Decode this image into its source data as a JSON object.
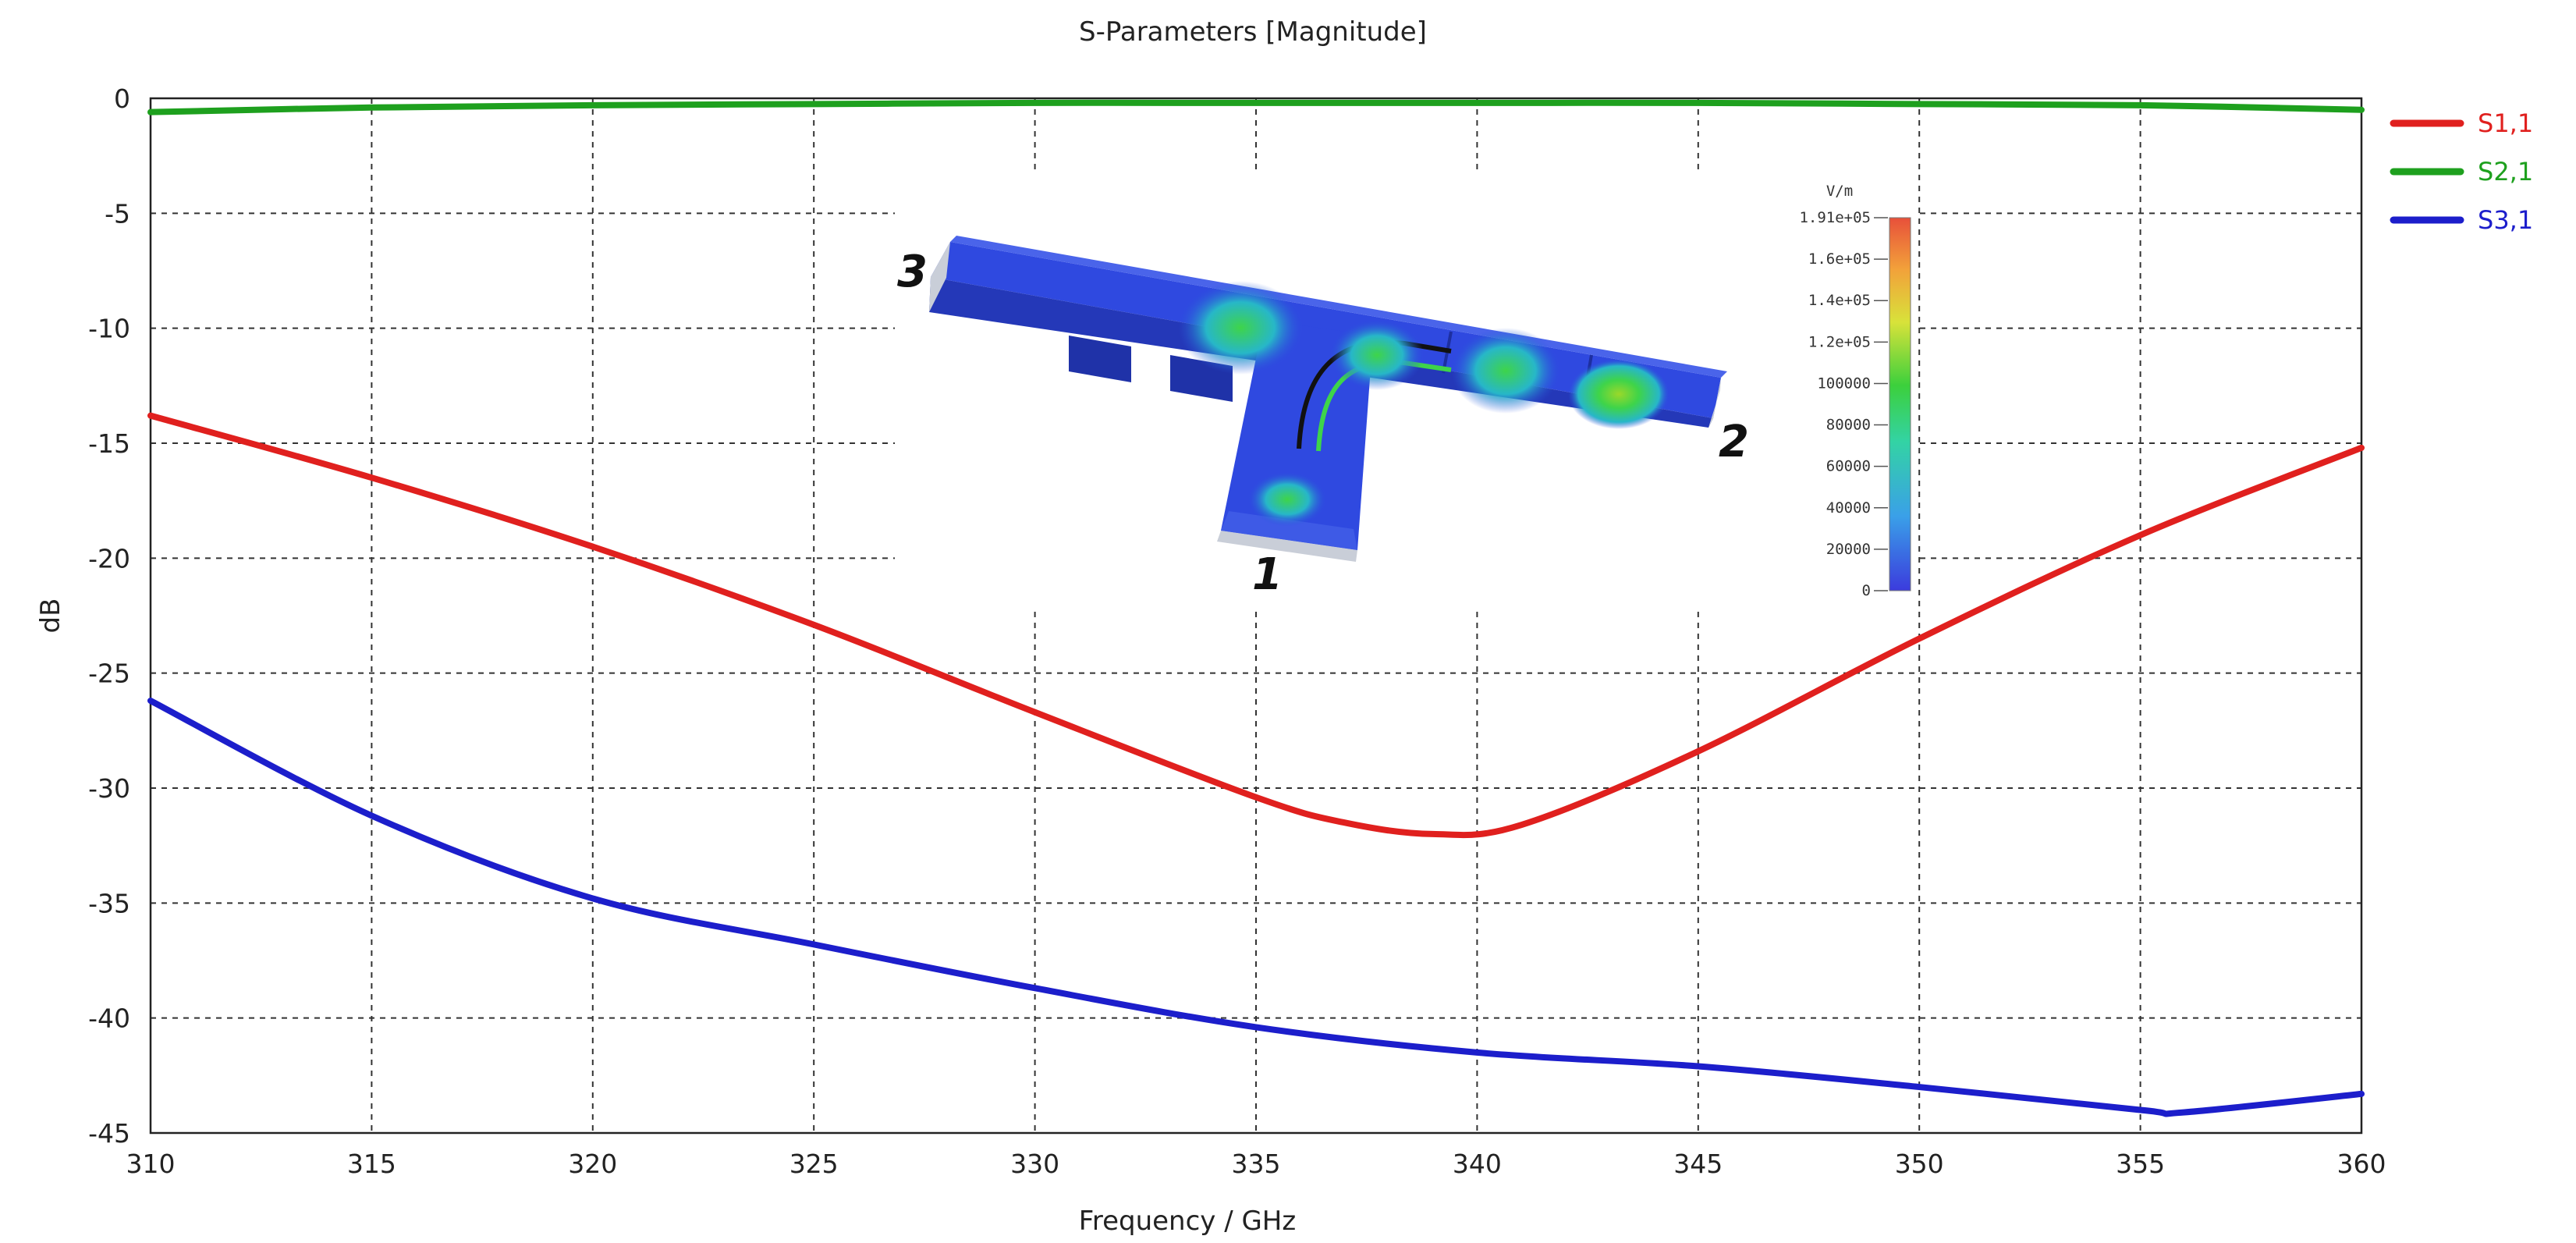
{
  "chart_data": {
    "type": "line",
    "title": "S-Parameters [Magnitude]",
    "xlabel": "Frequency / GHz",
    "ylabel": "dB",
    "xlim": [
      310,
      360
    ],
    "ylim": [
      -45,
      0
    ],
    "xticks": [
      "310",
      "315",
      "320",
      "325",
      "330",
      "335",
      "340",
      "345",
      "350",
      "355",
      "360"
    ],
    "yticks": [
      "0",
      "-5",
      "-10",
      "-15",
      "-20",
      "-25",
      "-30",
      "-35",
      "-40",
      "-45"
    ],
    "grid": true,
    "legend_position": "right",
    "series": [
      {
        "name": "S1,1",
        "color": "#e0201e",
        "x": [
          310,
          315,
          320,
          325,
          330,
          335,
          337,
          339,
          341,
          345,
          350,
          355,
          360
        ],
        "y": [
          -13.8,
          -16.5,
          -19.5,
          -22.9,
          -26.7,
          -30.4,
          -31.5,
          -32.0,
          -31.6,
          -28.4,
          -23.5,
          -19.0,
          -15.2
        ]
      },
      {
        "name": "S2,1",
        "color": "#1ea01e",
        "x": [
          310,
          315,
          320,
          325,
          330,
          335,
          340,
          345,
          350,
          355,
          360
        ],
        "y": [
          -0.6,
          -0.4,
          -0.3,
          -0.25,
          -0.2,
          -0.2,
          -0.2,
          -0.2,
          -0.25,
          -0.3,
          -0.5
        ]
      },
      {
        "name": "S3,1",
        "color": "#1c1ecb",
        "x": [
          310,
          315,
          320,
          325,
          330,
          335,
          340,
          345,
          350,
          355,
          356,
          360
        ],
        "y": [
          -26.2,
          -31.2,
          -34.8,
          -36.8,
          -38.7,
          -40.4,
          -41.5,
          -42.1,
          -43.0,
          -44.0,
          -44.1,
          -43.3
        ]
      }
    ]
  },
  "inset": {
    "unit": "V/m",
    "colorbar_labels": [
      "1.91e+05",
      "1.6e+05",
      "1.4e+05",
      "1.2e+05",
      "100000",
      "80000",
      "60000",
      "40000",
      "20000",
      "0"
    ],
    "port_labels": [
      "3",
      "2",
      "1"
    ]
  }
}
